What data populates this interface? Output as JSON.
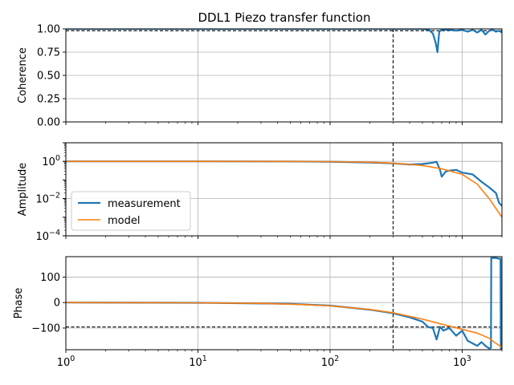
{
  "chart_data": {
    "type": "line",
    "title": "DDL1 Piezo transfer function",
    "xscale": "log",
    "xlim": [
      1,
      2000
    ],
    "x_tick_labels": [
      "10^0",
      "10^1",
      "10^2",
      "10^3"
    ],
    "grid": true,
    "legend": {
      "placement": "lower-left",
      "panel": "amplitude",
      "entries": [
        "measurement",
        "model"
      ]
    },
    "colors": {
      "measurement": "#1f77b4",
      "model": "#ff7f0e",
      "reference": "#000000"
    },
    "vline_x": 300,
    "panels": [
      {
        "id": "coherence",
        "ylabel": "Coherence",
        "ylim": [
          0,
          1
        ],
        "yscale": "linear",
        "y_tick_labels": [
          "0.00",
          "0.25",
          "0.50",
          "0.75",
          "1.00"
        ],
        "hline_y": 0.98,
        "series": [
          {
            "name": "measurement",
            "x": [
              1,
              10,
              100,
              200,
              400,
              500,
              560,
              600,
              630,
              650,
              670,
              700,
              800,
              900,
              1000,
              1100,
              1200,
              1300,
              1400,
              1500,
              1600,
              1700,
              1800,
              1900,
              2000
            ],
            "y": [
              1.0,
              1.0,
              1.0,
              1.0,
              1.0,
              1.0,
              0.99,
              0.95,
              0.85,
              0.75,
              0.97,
              0.99,
              0.99,
              0.98,
              0.99,
              0.97,
              0.99,
              0.96,
              0.99,
              0.94,
              0.98,
              0.99,
              0.97,
              0.98,
              0.96
            ]
          }
        ]
      },
      {
        "id": "amplitude",
        "ylabel": "Amplitude",
        "ylim": [
          0.0001,
          10
        ],
        "yscale": "log",
        "y_tick_labels": [
          "10^-4",
          "10^-2",
          "10^0"
        ],
        "series": [
          {
            "name": "measurement",
            "x": [
              1,
              10,
              50,
              100,
              200,
              300,
              400,
              500,
              600,
              640,
              680,
              700,
              750,
              800,
              900,
              1000,
              1200,
              1400,
              1600,
              1800,
              1900,
              2000
            ],
            "y": [
              1.0,
              1.0,
              0.99,
              0.96,
              0.87,
              0.78,
              0.68,
              0.72,
              0.85,
              0.95,
              0.35,
              0.15,
              0.28,
              0.32,
              0.35,
              0.25,
              0.2,
              0.08,
              0.04,
              0.02,
              0.006,
              0.004
            ]
          },
          {
            "name": "model",
            "x": [
              1,
              10,
              50,
              100,
              200,
              300,
              500,
              700,
              1000,
              1300,
              1600,
              2000
            ],
            "y": [
              1.0,
              1.0,
              0.99,
              0.97,
              0.9,
              0.8,
              0.6,
              0.4,
              0.2,
              0.06,
              0.01,
              0.001
            ]
          }
        ]
      },
      {
        "id": "phase",
        "ylabel": "Phase",
        "ylim": [
          -185,
          180
        ],
        "yscale": "linear",
        "y_tick_labels": [
          "−100",
          "0",
          "100"
        ],
        "hline_y": -96,
        "series": [
          {
            "name": "measurement",
            "x": [
              1,
              10,
              50,
              100,
              200,
              300,
              400,
              500,
              550,
              600,
              640,
              680,
              720,
              800,
              900,
              1000,
              1100,
              1200,
              1300,
              1400,
              1500,
              1600,
              1650,
              1660,
              1700,
              1800,
              1900,
              1950,
              1960,
              2000
            ],
            "y": [
              0,
              -1,
              -5,
              -12,
              -28,
              -42,
              -58,
              -75,
              -95,
              -100,
              -145,
              -95,
              -110,
              -100,
              -130,
              -110,
              -150,
              -160,
              -170,
              -155,
              -170,
              -180,
              -178,
              175,
              175,
              175,
              172,
              172,
              -180,
              -180
            ]
          },
          {
            "name": "model",
            "x": [
              1,
              10,
              30,
              60,
              100,
              200,
              300,
              500,
              700,
              1000,
              1300,
              1600,
              1800,
              2000
            ],
            "y": [
              0,
              -1,
              -3,
              -8,
              -13,
              -27,
              -40,
              -65,
              -85,
              -105,
              -120,
              -140,
              -160,
              -175
            ]
          }
        ]
      }
    ]
  }
}
